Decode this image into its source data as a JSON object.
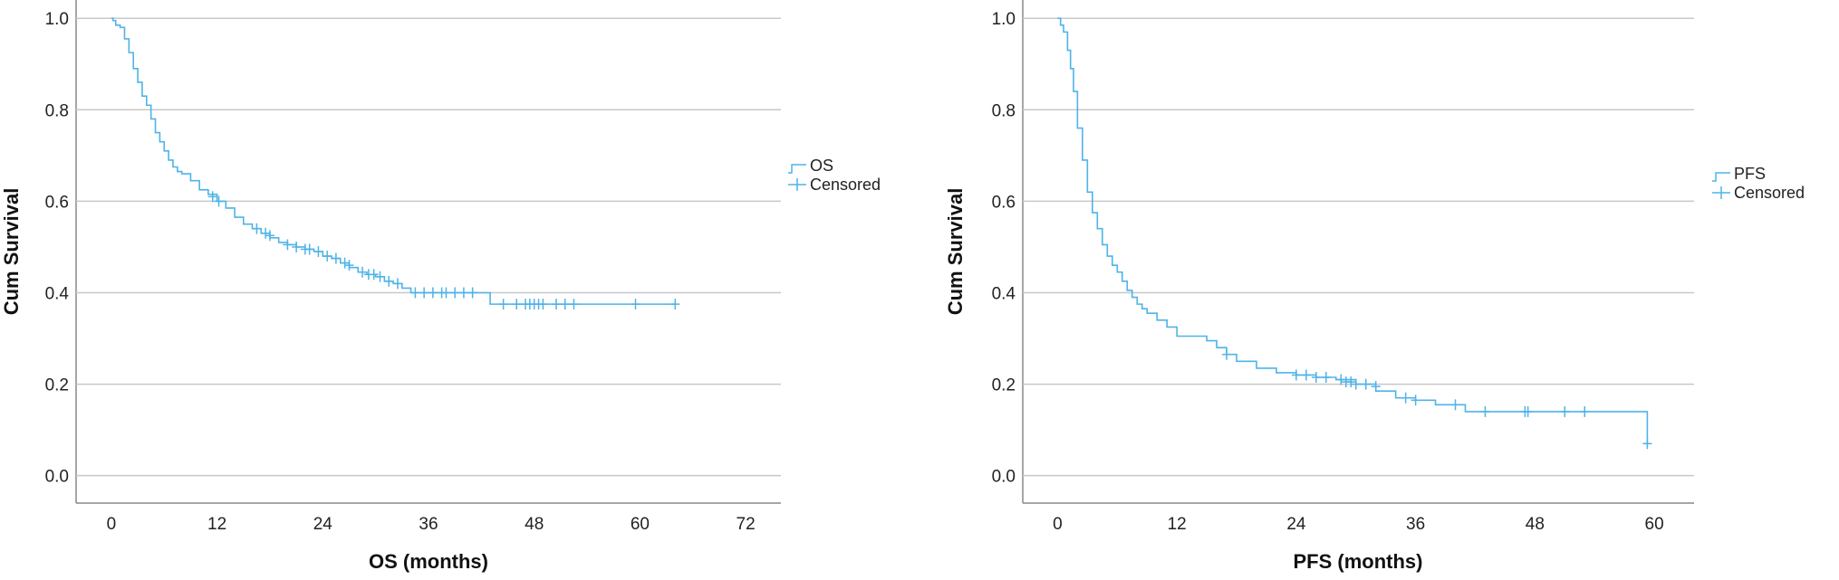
{
  "chart_data": [
    {
      "type": "line",
      "id": "os",
      "xlabel": "OS (months)",
      "ylabel": "Cum Survival",
      "xticks": [
        0,
        12,
        24,
        36,
        48,
        60,
        72
      ],
      "yticks": [
        0.0,
        0.2,
        0.4,
        0.6,
        0.8,
        1.0
      ],
      "xlim": [
        -4,
        76
      ],
      "ylim": [
        -0.06,
        1.04
      ],
      "grid": "horizontal",
      "legend_position": "right",
      "legend": [
        "OS",
        "Censored"
      ],
      "line_color": "#4fb3e8",
      "series": [
        {
          "name": "OS",
          "x": [
            0,
            0.2,
            0.5,
            1.0,
            1.5,
            2.0,
            2.5,
            3.0,
            3.5,
            4.0,
            4.5,
            5.0,
            5.5,
            6.0,
            6.5,
            7.0,
            7.5,
            8.0,
            9.0,
            10.0,
            11.0,
            12.0,
            13.0,
            14.0,
            15.0,
            16.0,
            17.0,
            18.0,
            19.0,
            20.0,
            21.0,
            22.0,
            23.0,
            24.0,
            25.0,
            26.0,
            27.0,
            28.0,
            29.0,
            30.0,
            31.0,
            32.0,
            33.0,
            34.0,
            36.0,
            38.0,
            40.0,
            42.0,
            43.0,
            45.0,
            48.0,
            52.0,
            56.0,
            60.0,
            64.0
          ],
          "y": [
            1.0,
            0.995,
            0.985,
            0.98,
            0.955,
            0.925,
            0.89,
            0.86,
            0.83,
            0.81,
            0.78,
            0.75,
            0.73,
            0.71,
            0.69,
            0.675,
            0.665,
            0.66,
            0.645,
            0.625,
            0.615,
            0.6,
            0.585,
            0.565,
            0.55,
            0.54,
            0.53,
            0.52,
            0.51,
            0.505,
            0.5,
            0.495,
            0.49,
            0.48,
            0.475,
            0.465,
            0.455,
            0.445,
            0.44,
            0.435,
            0.425,
            0.42,
            0.41,
            0.4,
            0.4,
            0.4,
            0.4,
            0.4,
            0.375,
            0.375,
            0.375,
            0.375,
            0.375,
            0.375,
            0.375
          ]
        }
      ],
      "censored": {
        "x": [
          11.5,
          12.2,
          16.5,
          17.5,
          18.0,
          20.0,
          21.0,
          22.0,
          22.5,
          23.5,
          24.5,
          25.5,
          26.5,
          27.0,
          28.5,
          29.2,
          29.8,
          30.5,
          31.5,
          32.5,
          34.5,
          35.5,
          36.5,
          37.5,
          38.0,
          39.0,
          40.0,
          41.0,
          44.5,
          46.0,
          47.0,
          47.5,
          48.0,
          48.5,
          49.0,
          50.5,
          51.5,
          52.5,
          59.5,
          64.0
        ],
        "y": [
          0.61,
          0.6,
          0.54,
          0.53,
          0.525,
          0.505,
          0.5,
          0.495,
          0.495,
          0.49,
          0.48,
          0.475,
          0.465,
          0.46,
          0.445,
          0.44,
          0.44,
          0.435,
          0.425,
          0.42,
          0.4,
          0.4,
          0.4,
          0.4,
          0.4,
          0.4,
          0.4,
          0.4,
          0.375,
          0.375,
          0.375,
          0.375,
          0.375,
          0.375,
          0.375,
          0.375,
          0.375,
          0.375,
          0.375,
          0.375
        ]
      }
    },
    {
      "type": "line",
      "id": "pfs",
      "xlabel": "PFS (months)",
      "ylabel": "Cum Survival",
      "xticks": [
        0,
        12,
        24,
        36,
        48,
        60
      ],
      "yticks": [
        0.0,
        0.2,
        0.4,
        0.6,
        0.8,
        1.0
      ],
      "xlim": [
        -3.5,
        64
      ],
      "ylim": [
        -0.06,
        1.04
      ],
      "grid": "horizontal",
      "legend_position": "right",
      "legend": [
        "PFS",
        "Censored"
      ],
      "line_color": "#4fb3e8",
      "series": [
        {
          "name": "PFS",
          "x": [
            0,
            0.3,
            0.6,
            1.0,
            1.3,
            1.6,
            2.0,
            2.5,
            3.0,
            3.5,
            4.0,
            4.5,
            5.0,
            5.5,
            6.0,
            6.5,
            7.0,
            7.5,
            8.0,
            8.5,
            9.0,
            10.0,
            11.0,
            12.0,
            13.0,
            14.0,
            15.0,
            16.0,
            17.0,
            18.0,
            20.0,
            22.0,
            24.0,
            26.0,
            28.0,
            30.0,
            32.0,
            34.0,
            36.0,
            38.0,
            40.0,
            41.0,
            45.0,
            50.0,
            55.0,
            59.0,
            59.3
          ],
          "y": [
            1.0,
            0.985,
            0.97,
            0.93,
            0.89,
            0.84,
            0.76,
            0.69,
            0.62,
            0.575,
            0.54,
            0.505,
            0.48,
            0.46,
            0.445,
            0.425,
            0.405,
            0.39,
            0.375,
            0.365,
            0.355,
            0.34,
            0.325,
            0.305,
            0.305,
            0.305,
            0.295,
            0.28,
            0.265,
            0.25,
            0.235,
            0.225,
            0.22,
            0.215,
            0.21,
            0.2,
            0.185,
            0.17,
            0.165,
            0.155,
            0.155,
            0.14,
            0.14,
            0.14,
            0.14,
            0.14,
            0.07
          ]
        }
      ],
      "censored": {
        "x": [
          17.0,
          24.0,
          25.0,
          26.0,
          27.0,
          28.5,
          29.0,
          29.5,
          30.0,
          31.0,
          32.0,
          35.0,
          36.0,
          40.0,
          43.0,
          47.0,
          47.3,
          51.0,
          53.0,
          59.3
        ],
        "y": [
          0.265,
          0.22,
          0.22,
          0.215,
          0.215,
          0.21,
          0.205,
          0.205,
          0.2,
          0.2,
          0.195,
          0.17,
          0.165,
          0.155,
          0.14,
          0.14,
          0.14,
          0.14,
          0.14,
          0.07
        ]
      }
    }
  ]
}
